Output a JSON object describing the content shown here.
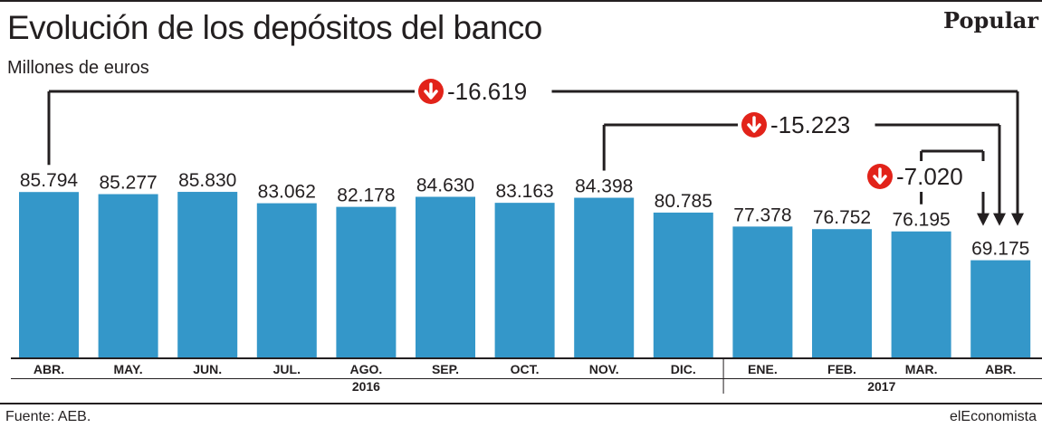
{
  "header": {
    "title": "Evolución de los depósitos del banco",
    "subtitle": "Millones de euros",
    "brand": "Popular"
  },
  "footer": {
    "source": "Fuente: AEB.",
    "credit": "elEconomista"
  },
  "colors": {
    "bar": "#3497c9",
    "arrow": "#e2231a",
    "ink": "#231f20"
  },
  "chart_data": {
    "type": "bar",
    "categories": [
      "ABR.",
      "MAY.",
      "JUN.",
      "JUL.",
      "AGO.",
      "SEP.",
      "OCT.",
      "NOV.",
      "DIC.",
      "ENE.",
      "FEB.",
      "MAR.",
      "ABR."
    ],
    "values": [
      85794,
      85277,
      85830,
      83062,
      82178,
      84630,
      83163,
      84398,
      80785,
      77378,
      76752,
      76195,
      69175
    ],
    "value_labels": [
      "85.794",
      "85.277",
      "85.830",
      "83.062",
      "82.178",
      "84.630",
      "83.163",
      "84.398",
      "80.785",
      "77.378",
      "76.752",
      "76.195",
      "69.175"
    ],
    "year_groups": [
      {
        "label": "2016",
        "from": 0,
        "to": 8
      },
      {
        "label": "2017",
        "from": 9,
        "to": 12
      }
    ],
    "ylim": [
      45500,
      86500
    ],
    "grid": false,
    "annotations": [
      {
        "label": "-16.619",
        "from": 0,
        "to": 12,
        "icon": "down-arrow-icon"
      },
      {
        "label": "-15.223",
        "from": 7,
        "to": 12,
        "icon": "down-arrow-icon"
      },
      {
        "label": "-7.020",
        "from": 11,
        "to": 12,
        "icon": "down-arrow-icon"
      }
    ]
  }
}
